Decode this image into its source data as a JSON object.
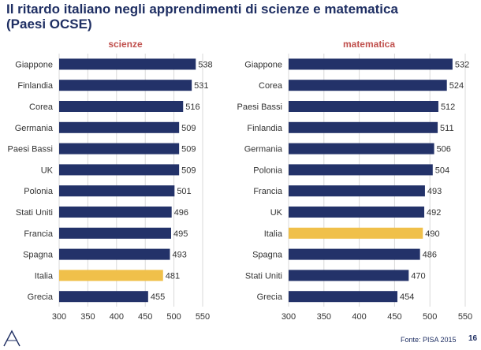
{
  "title": {
    "line1": "Il ritardo italiano negli apprendimenti di scienze e matematica",
    "line2": "(Paesi OCSE)"
  },
  "colors": {
    "bar": "#233269",
    "highlight": "#f0c04a",
    "chart_title": "#c0504d",
    "text": "#333333",
    "grid": "#d9d9d9"
  },
  "chart_data": [
    {
      "type": "bar",
      "orientation": "horizontal",
      "title": "scienze",
      "categories": [
        "Giappone",
        "Finlandia",
        "Corea",
        "Germania",
        "Paesi Bassi",
        "UK",
        "Polonia",
        "Stati Uniti",
        "Francia",
        "Spagna",
        "Italia",
        "Grecia"
      ],
      "values": [
        538,
        531,
        516,
        509,
        509,
        509,
        501,
        496,
        495,
        493,
        481,
        455
      ],
      "highlight": "Italia",
      "xlim": [
        300,
        550
      ],
      "xticks": [
        300,
        350,
        400,
        450,
        500,
        550
      ],
      "grid": true
    },
    {
      "type": "bar",
      "orientation": "horizontal",
      "title": "matematica",
      "categories": [
        "Giappone",
        "Corea",
        "Paesi Bassi",
        "Finlandia",
        "Germania",
        "Polonia",
        "Francia",
        "UK",
        "Italia",
        "Spagna",
        "Stati Uniti",
        "Grecia"
      ],
      "values": [
        532,
        524,
        512,
        511,
        506,
        504,
        493,
        492,
        490,
        486,
        470,
        454
      ],
      "highlight": "Italia",
      "xlim": [
        300,
        550
      ],
      "xticks": [
        300,
        350,
        400,
        450,
        500,
        550
      ],
      "grid": true
    }
  ],
  "footer": {
    "source": "Fonte: PISA 2015",
    "page": "16"
  }
}
